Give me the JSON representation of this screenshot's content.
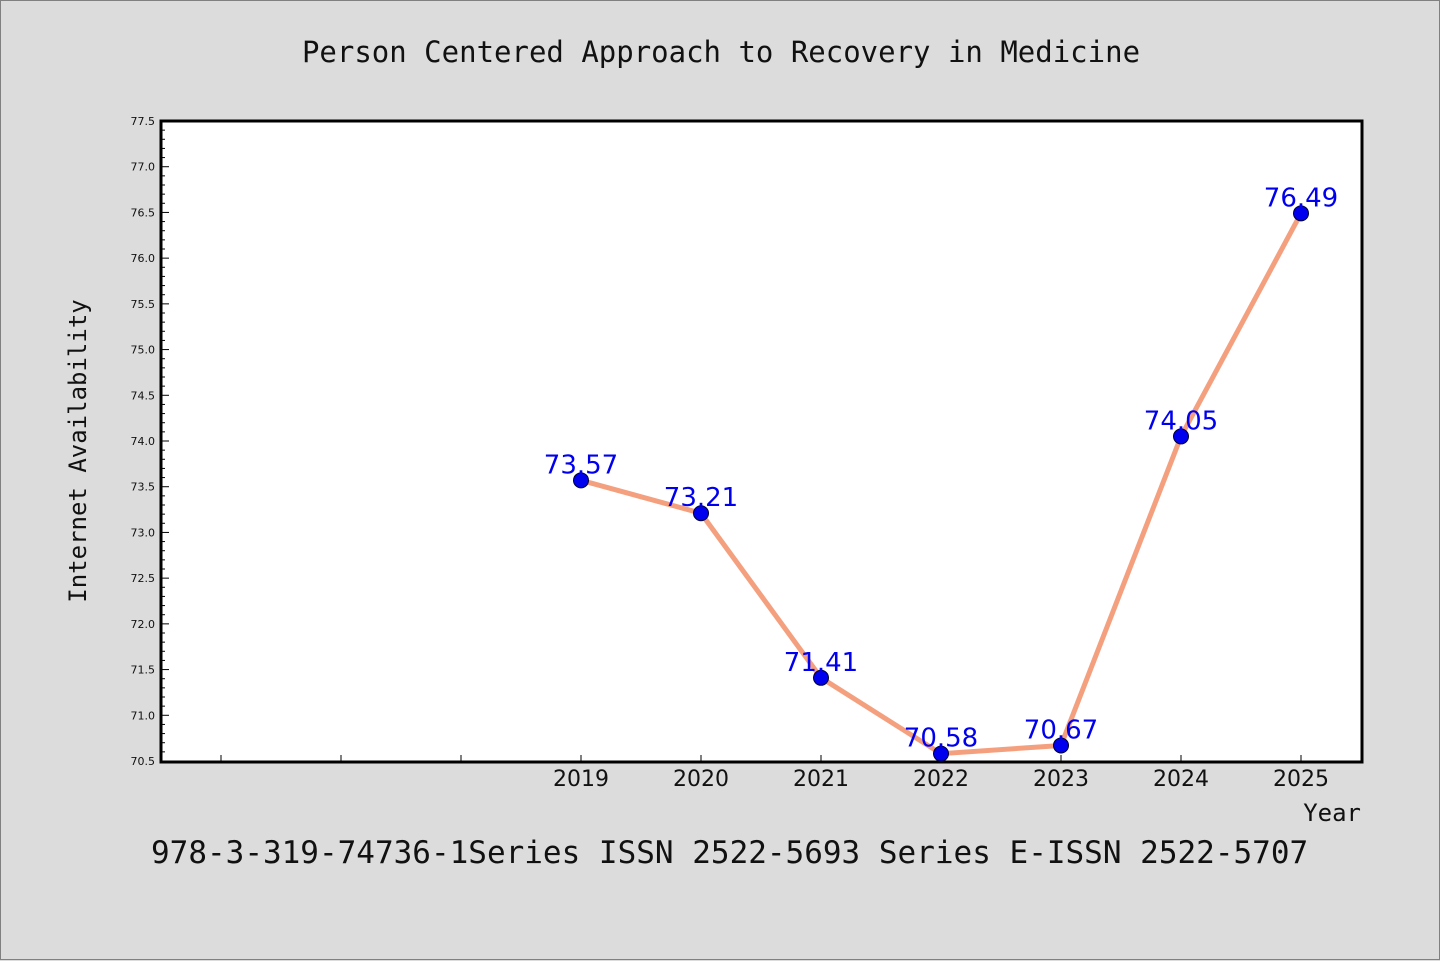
{
  "title": "Person Centered Approach to Recovery in Medicine",
  "footer": "978-3-319-74736-1Series ISSN 2522-5693 Series E-ISSN 2522-5707",
  "colors": {
    "background": "#dcdcdc",
    "plot_background": "#ffffff",
    "line": "#f4a07f",
    "marker": "#0000ee",
    "label": "#0000ee"
  },
  "chart_data": {
    "type": "line",
    "title": "Person Centered Approach to Recovery in Medicine",
    "xlabel": "Year",
    "ylabel": "Internet Availability",
    "x": [
      "2019",
      "2020",
      "2021",
      "2022",
      "2023",
      "2024",
      "2025"
    ],
    "series": [
      {
        "values": [
          73.57,
          73.21,
          71.41,
          70.58,
          70.67,
          74.05,
          76.49
        ]
      }
    ],
    "data_labels": [
      "73.57",
      "73.21",
      "71.41",
      "70.58",
      "70.67",
      "74.05",
      "76.49"
    ],
    "ylim": [
      70.5,
      77.5
    ],
    "yticks": [
      "70.5",
      "71.0",
      "71.5",
      "72.0",
      "72.5",
      "73.0",
      "73.5",
      "74.0",
      "74.5",
      "75.0",
      "75.5",
      "76.0",
      "76.5",
      "77.0",
      "77.5"
    ],
    "grid": false,
    "legend": "none"
  }
}
